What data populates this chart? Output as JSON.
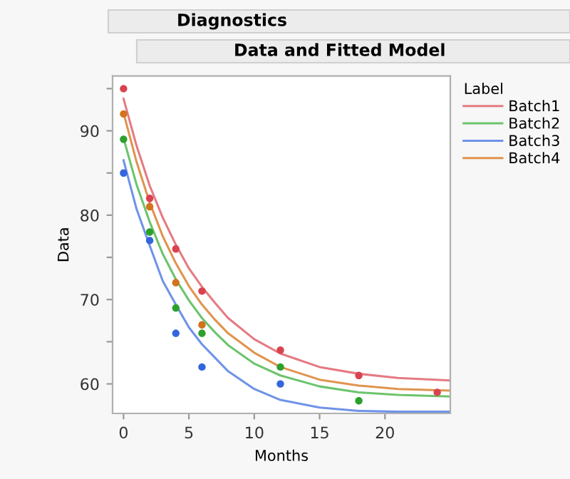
{
  "chart_data": {
    "type": "scatter",
    "title": "Diagnostics",
    "subtitle": "Data and Fitted Model",
    "xlabel": "Months",
    "ylabel": "Data",
    "legend_title": "Label",
    "legend": "top right",
    "grid": false,
    "xlim": [
      -0.84,
      25
    ],
    "xticks": [
      0,
      5,
      10,
      15,
      20
    ],
    "ylim": [
      56.5,
      96.5
    ],
    "yticks": [
      60,
      {
        "value": 65,
        "label": null
      },
      70,
      {
        "value": 75,
        "label": null
      },
      80,
      {
        "value": 85,
        "label": null
      },
      90,
      {
        "value": 95,
        "label": null
      }
    ],
    "series": [
      {
        "marker": "circle",
        "color": "#d9434f",
        "x": [
          0,
          2,
          4,
          6,
          12,
          18,
          24
        ],
        "values": [
          95,
          82,
          76,
          71,
          64,
          61,
          59
        ]
      },
      {
        "marker": "circle",
        "color": "#2ca02c",
        "x": [
          0,
          2,
          4,
          6,
          12,
          18
        ],
        "values": [
          89,
          78,
          69,
          66,
          62,
          58
        ]
      },
      {
        "marker": "circle",
        "color": "#3366dd",
        "x": [
          0,
          2,
          4,
          6,
          12
        ],
        "values": [
          85,
          77,
          66,
          62,
          60
        ]
      },
      {
        "marker": "circle",
        "color": "#d2731e",
        "x": [
          0,
          2,
          4,
          6
        ],
        "values": [
          92,
          81,
          72,
          67
        ]
      },
      {
        "type": "line",
        "name": "Batch1",
        "color": "#e57a82",
        "x": [
          0,
          1,
          2,
          3,
          4,
          5,
          6,
          7,
          8,
          10,
          12,
          15,
          18,
          21,
          25
        ],
        "values": [
          93.8,
          88.2,
          83.5,
          79.7,
          76.5,
          73.7,
          71.5,
          69.6,
          67.8,
          65.3,
          63.6,
          62.0,
          61.2,
          60.7,
          60.4
        ]
      },
      {
        "type": "line",
        "name": "Batch2",
        "color": "#6cc46c",
        "x": [
          0,
          1,
          2,
          3,
          4,
          5,
          6,
          7,
          8,
          10,
          12,
          15,
          18,
          21,
          25
        ],
        "values": [
          89.1,
          83.6,
          79.2,
          75.4,
          72.4,
          69.9,
          67.8,
          66.1,
          64.6,
          62.4,
          61.0,
          59.7,
          59.0,
          58.7,
          58.5
        ]
      },
      {
        "type": "line",
        "name": "Batch3",
        "color": "#6f93e8",
        "x": [
          0,
          1,
          2,
          3,
          4,
          5,
          6,
          7,
          8,
          10,
          12,
          15,
          18,
          21,
          25
        ],
        "values": [
          86.5,
          80.7,
          76.4,
          72.2,
          69.4,
          66.7,
          64.7,
          63.1,
          61.5,
          59.4,
          58.1,
          57.2,
          56.8,
          56.7,
          56.7
        ]
      },
      {
        "type": "line",
        "name": "Batch4",
        "color": "#e0944f",
        "x": [
          0,
          1,
          2,
          3,
          4,
          5,
          6,
          7,
          8,
          10,
          12,
          15,
          18,
          21,
          25
        ],
        "values": [
          92.1,
          86.3,
          81.5,
          77.5,
          74.3,
          71.6,
          69.4,
          67.6,
          66.0,
          63.7,
          62.0,
          60.5,
          59.8,
          59.4,
          59.2
        ]
      }
    ]
  }
}
